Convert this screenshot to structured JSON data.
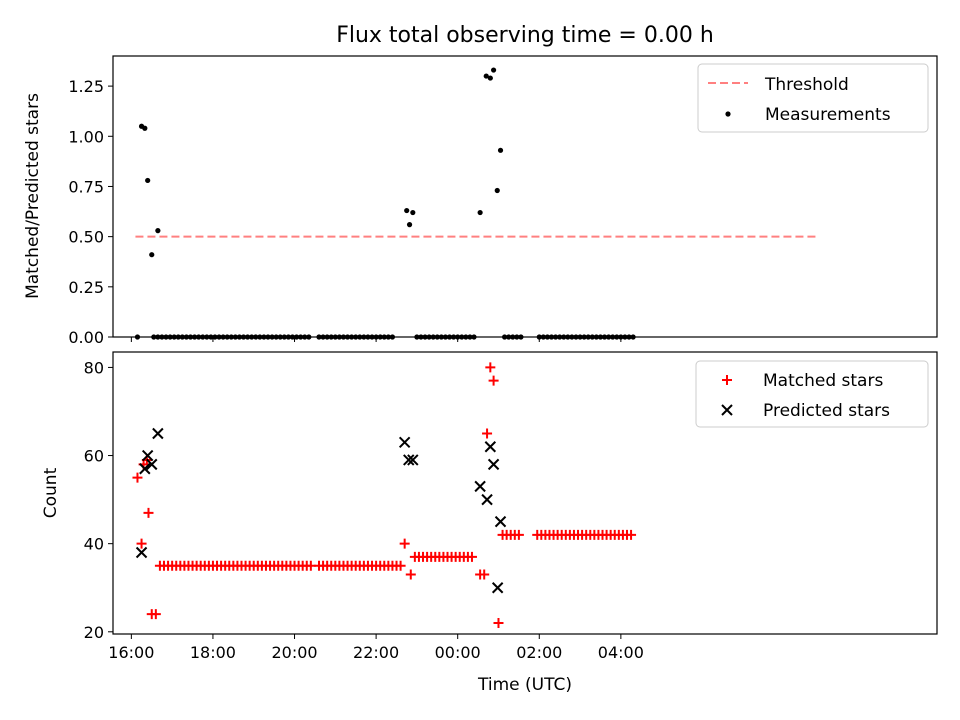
{
  "title": "Flux total observing time = 0.00 h",
  "xlabel": "Time (UTC)",
  "x_tick_labels": [
    "16:00",
    "18:00",
    "20:00",
    "22:00",
    "00:00",
    "02:00",
    "04:00"
  ],
  "colors": {
    "threshold": "#ff8080",
    "measurements": "#000000",
    "matched": "#ff0000",
    "predicted": "#000000"
  },
  "chart_data": [
    {
      "type": "scatter",
      "ylabel": "Matched/Predicted stars",
      "x_unit": "hours since 16:00 UTC",
      "xlim": [
        -0.45,
        19.75
      ],
      "ylim": [
        0,
        1.4
      ],
      "y_ticks": [
        0.0,
        0.25,
        0.5,
        0.75,
        1.0,
        1.25
      ],
      "y_tick_labels": [
        "0.00",
        "0.25",
        "0.50",
        "0.75",
        "1.00",
        "1.25"
      ],
      "legend_position": "upper-right",
      "series": [
        {
          "name": "Threshold",
          "kind": "dashed-line",
          "x": [
            0.1,
            16.8
          ],
          "y": [
            0.5,
            0.5
          ]
        },
        {
          "name": "Measurements",
          "kind": "points",
          "points": [
            [
              0.25,
              1.05
            ],
            [
              0.33,
              1.04
            ],
            [
              0.4,
              0.78
            ],
            [
              0.5,
              0.41
            ],
            [
              0.65,
              0.53
            ],
            [
              6.75,
              0.63
            ],
            [
              6.82,
              0.56
            ],
            [
              6.9,
              0.62
            ],
            [
              8.55,
              0.62
            ],
            [
              8.7,
              1.3
            ],
            [
              8.8,
              1.29
            ],
            [
              8.88,
              1.33
            ],
            [
              8.97,
              0.73
            ],
            [
              9.05,
              0.93
            ]
          ],
          "zero_ranges": [
            [
              0.15,
              0.15,
              0.1
            ],
            [
              0.55,
              4.4,
              0.1
            ],
            [
              4.6,
              6.4,
              0.1
            ],
            [
              7.0,
              8.45,
              0.1
            ],
            [
              9.15,
              9.55,
              0.1
            ],
            [
              10.0,
              12.3,
              0.1
            ]
          ]
        }
      ]
    },
    {
      "type": "scatter",
      "ylabel": "Count",
      "x_unit": "hours since 16:00 UTC",
      "xlim": [
        -0.45,
        19.75
      ],
      "ylim": [
        19.5,
        83.5
      ],
      "y_ticks": [
        20,
        40,
        60,
        80
      ],
      "y_tick_labels": [
        "20",
        "40",
        "60",
        "80"
      ],
      "legend_position": "upper-right",
      "series": [
        {
          "name": "Matched stars",
          "marker": "plus",
          "points": [
            [
              0.15,
              55
            ],
            [
              0.25,
              40
            ],
            [
              0.3,
              58
            ],
            [
              0.38,
              59
            ],
            [
              0.42,
              47
            ],
            [
              0.5,
              24
            ],
            [
              0.6,
              24
            ],
            [
              6.7,
              40
            ],
            [
              6.85,
              33
            ],
            [
              8.55,
              33
            ],
            [
              8.65,
              33
            ],
            [
              8.72,
              65
            ],
            [
              8.8,
              80
            ],
            [
              8.88,
              77
            ],
            [
              9.0,
              22
            ]
          ],
          "constant_runs": [
            {
              "y": 35,
              "x_from": 0.7,
              "x_to": 4.4,
              "step": 0.1
            },
            {
              "y": 35,
              "x_from": 4.6,
              "x_to": 6.65,
              "step": 0.1
            },
            {
              "y": 37,
              "x_from": 6.95,
              "x_to": 8.4,
              "step": 0.1
            },
            {
              "y": 42,
              "x_from": 9.1,
              "x_to": 9.55,
              "step": 0.1
            },
            {
              "y": 42,
              "x_from": 9.95,
              "x_to": 12.3,
              "step": 0.1
            }
          ]
        },
        {
          "name": "Predicted stars",
          "marker": "x",
          "points": [
            [
              0.25,
              38
            ],
            [
              0.33,
              57
            ],
            [
              0.4,
              60
            ],
            [
              0.5,
              58
            ],
            [
              0.65,
              65
            ],
            [
              6.7,
              63
            ],
            [
              6.8,
              59
            ],
            [
              6.9,
              59
            ],
            [
              8.55,
              53
            ],
            [
              8.72,
              50
            ],
            [
              8.8,
              62
            ],
            [
              8.88,
              58
            ],
            [
              8.98,
              30
            ],
            [
              9.05,
              45
            ]
          ]
        }
      ]
    }
  ]
}
